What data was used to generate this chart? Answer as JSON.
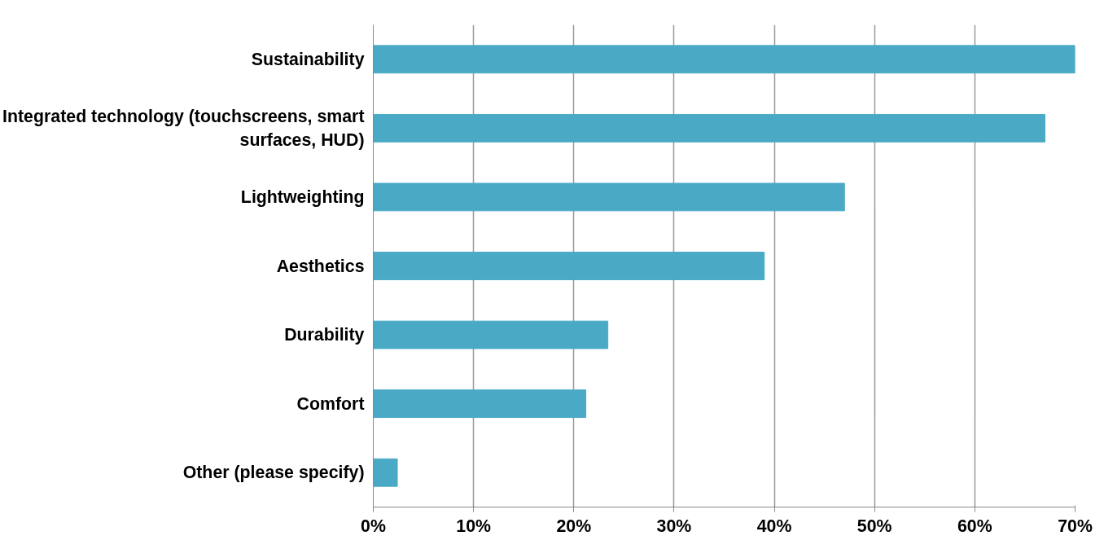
{
  "chart_data": {
    "type": "bar",
    "orientation": "horizontal",
    "categories": [
      "Sustainability",
      "Integrated technology (touchscreens, smart surfaces, HUD)",
      "Lightweighting",
      "Aesthetics",
      "Durability",
      "Comfort",
      "Other (please specify)"
    ],
    "values": [
      70,
      67,
      47,
      39,
      23.4,
      21.2,
      2.4
    ],
    "color": "#4aaac6",
    "xlim": [
      0,
      70
    ],
    "xticks": [
      {
        "value": 0,
        "label": "0%"
      },
      {
        "value": 10,
        "label": "10%"
      },
      {
        "value": 20,
        "label": "20%"
      },
      {
        "value": 30,
        "label": "30%"
      },
      {
        "value": 40,
        "label": "40%"
      },
      {
        "value": 50,
        "label": "50%"
      },
      {
        "value": 60,
        "label": "60%"
      },
      {
        "value": 70,
        "label": "70%"
      }
    ],
    "grid": "x"
  }
}
